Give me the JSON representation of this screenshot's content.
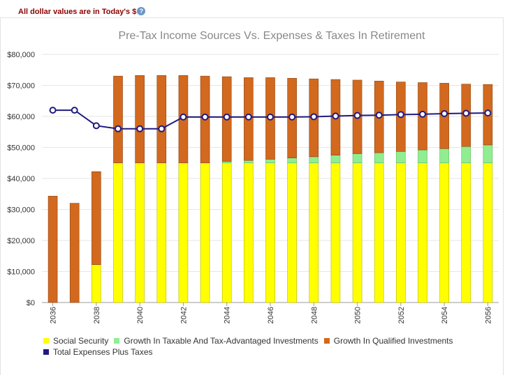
{
  "notice": {
    "text": "All dollar values are in Today's $",
    "help_icon": "question-mark-circle-icon"
  },
  "colors": {
    "social_security": "#ffff00",
    "taxable_growth": "#90ee90",
    "qualified_growth": "#d2691e",
    "expenses": "#1f1a80",
    "title": "#888888",
    "grid": "#e6e6e6"
  },
  "chart_data": {
    "type": "bar",
    "title": "Pre-Tax Income Sources Vs. Expenses & Taxes In Retirement",
    "xlabel": "",
    "ylabel": "",
    "ylim": [
      0,
      80000
    ],
    "yticks": [
      0,
      10000,
      20000,
      30000,
      40000,
      50000,
      60000,
      70000,
      80000
    ],
    "ytick_labels": [
      "$0",
      "$10,000",
      "$20,000",
      "$30,000",
      "$40,000",
      "$50,000",
      "$60,000",
      "$70,000",
      "$80,000"
    ],
    "xtick_labels": [
      "2036",
      "2038",
      "2040",
      "2042",
      "2044",
      "2046",
      "2048",
      "2050",
      "2052",
      "2054",
      "2056"
    ],
    "categories": [
      2036,
      2037,
      2038,
      2039,
      2040,
      2041,
      2042,
      2043,
      2044,
      2045,
      2046,
      2047,
      2048,
      2049,
      2050,
      2051,
      2052,
      2053,
      2054,
      2055,
      2056
    ],
    "stacked": true,
    "series": [
      {
        "name": "Social Security",
        "type": "bar",
        "values": [
          0,
          0,
          12200,
          45000,
          45000,
          45000,
          45000,
          45000,
          45000,
          45000,
          45000,
          45000,
          45000,
          45000,
          45000,
          45000,
          45000,
          45000,
          45000,
          45000,
          45000
        ]
      },
      {
        "name": "Growth In Taxable And Tax-Advantaged Investments",
        "type": "bar",
        "values": [
          0,
          0,
          0,
          0,
          0,
          0,
          0,
          0,
          500,
          800,
          1200,
          1600,
          2000,
          2500,
          3000,
          3300,
          3700,
          4200,
          4600,
          5300,
          5800
        ]
      },
      {
        "name": "Growth In Qualified Investments",
        "type": "bar",
        "values": [
          34300,
          32000,
          30000,
          28000,
          28200,
          28200,
          28200,
          28000,
          27300,
          26700,
          26300,
          25700,
          25100,
          24400,
          23700,
          23100,
          22400,
          21700,
          21100,
          20100,
          19500
        ]
      },
      {
        "name": "Total Expenses Plus Taxes",
        "type": "line",
        "values": [
          62000,
          62000,
          57000,
          56000,
          56000,
          56000,
          59800,
          59800,
          59800,
          59800,
          59800,
          59800,
          59900,
          60100,
          60300,
          60400,
          60600,
          60700,
          60900,
          61000,
          61100
        ]
      }
    ],
    "legend": [
      {
        "label": "Social Security",
        "color": "#ffff00"
      },
      {
        "label": "Growth In Taxable And Tax-Advantaged Investments",
        "color": "#90ee90"
      },
      {
        "label": "Growth In Qualified Investments",
        "color": "#d2691e"
      },
      {
        "label": "Total Expenses Plus Taxes",
        "color": "#1f1a80"
      }
    ],
    "legend_position": "bottom-left"
  }
}
